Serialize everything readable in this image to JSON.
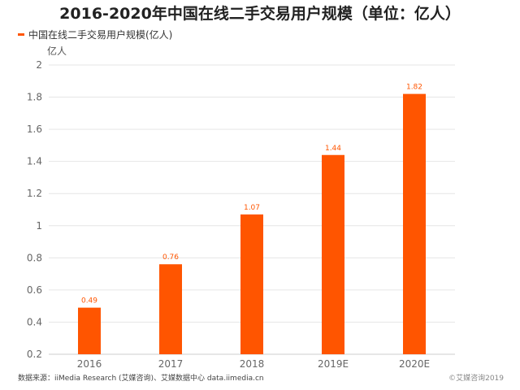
{
  "title": "2016-2020年中国在线二手交易用户规模（单位：亿人）",
  "unit_label": "亿人",
  "footer": {
    "source": "数据来源：iiMedia Research (艾媒咨询)、艾媒数据中心 data.iimedia.cn",
    "copyright": "©艾媒咨询2019"
  },
  "colors": {
    "bar": "#FF5500",
    "label": "#FF5500",
    "grid": "#e6e6e6",
    "axis": "#cccccc",
    "tick": "#666666"
  },
  "chart_data": {
    "type": "bar",
    "title": "2016-2020年中国在线二手交易用户规模（单位：亿人）",
    "ylabel": "亿人",
    "xlabel": "",
    "categories": [
      "2016",
      "2017",
      "2018",
      "2019E",
      "2020E"
    ],
    "series": [
      {
        "name": "中国在线二手交易用户规模(亿人)",
        "values": [
          0.49,
          0.76,
          1.07,
          1.44,
          1.82
        ]
      }
    ],
    "ylim": [
      0.2,
      2
    ],
    "yticks": [
      "0.2",
      "0.4",
      "0.6",
      "0.8",
      "1",
      "1.2",
      "1.4",
      "1.6",
      "1.8",
      "2"
    ],
    "data_labels": [
      "0.49",
      "0.76",
      "1.07",
      "1.44",
      "1.82"
    ],
    "grid": true,
    "legend_position": "top-left"
  }
}
